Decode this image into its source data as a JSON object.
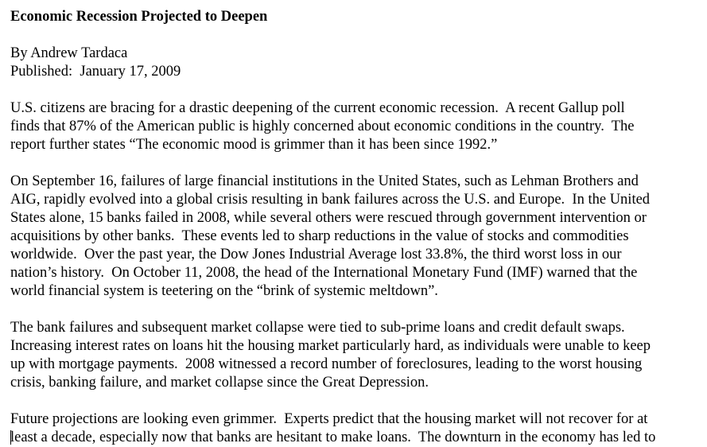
{
  "article": {
    "headline": "Economic Recession Projected to Deepen",
    "byline": "By Andrew Tardaca",
    "published": "Published:  January 17, 2009",
    "paragraphs": [
      [
        "U.S. citizens are bracing for a drastic deepening of the current economic recession.  A recent Gallup poll",
        "finds that 87% of the American public is highly concerned about economic conditions in the country.  The",
        "report further states “The economic mood is grimmer than it has been since 1992.”"
      ],
      [
        "On September 16, failures of large financial institutions in the United States, such as Lehman Brothers and",
        "AIG, rapidly evolved into a global crisis resulting in bank failures across the U.S. and Europe.  In the United",
        "States alone, 15 banks failed in 2008, while several others were rescued through government intervention or",
        "acquisitions by other banks.  These events led to sharp reductions in the value of stocks and commodities",
        "worldwide.  Over the past year, the Dow Jones Industrial Average lost 33.8%, the third worst loss in our",
        "nation’s history.  On October 11, 2008, the head of the International Monetary Fund (IMF) warned that the",
        "world financial system is teetering on the “brink of systemic meltdown”."
      ],
      [
        "The bank failures and subsequent market collapse were tied to sub-prime loans and credit default swaps.",
        "Increasing interest rates on loans hit the housing market particularly hard, as individuals were unable to keep",
        "up with mortgage payments.  2008 witnessed a record number of foreclosures, leading to the worst housing",
        "crisis, banking failure, and market collapse since the Great Depression."
      ],
      [
        "Future projections are looking even grimmer.  Experts predict that the housing market will not recover for at",
        "least a decade, especially now that banks are hesitant to make loans.  The downturn in the economy has led to"
      ]
    ]
  }
}
